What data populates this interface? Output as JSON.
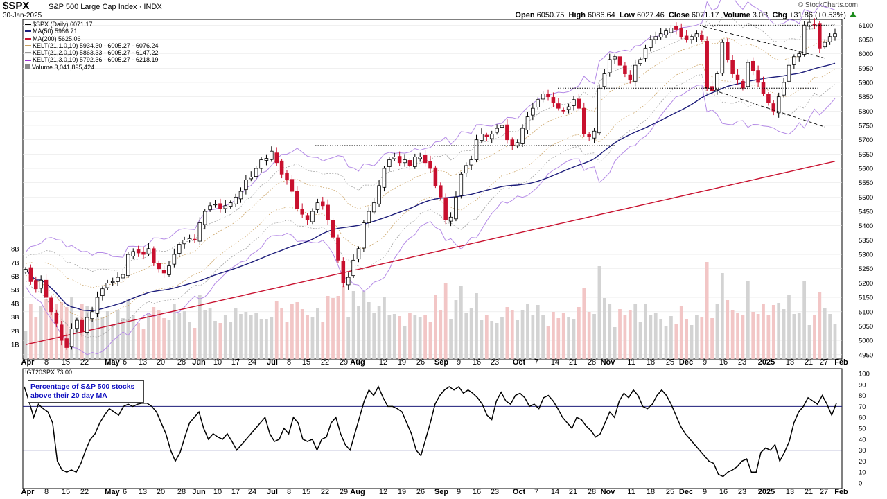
{
  "header": {
    "symbol": "$SPX",
    "name": "S&P 500 Large Cap Index",
    "exchange": "INDX",
    "date": "30-Jan-2025",
    "brand": "© StockCharts.com",
    "open_label": "Open",
    "open": "6050.75",
    "high_label": "High",
    "high": "6086.64",
    "low_label": "Low",
    "low": "6027.46",
    "close_label": "Close",
    "close": "6071.17",
    "volume_label": "Volume",
    "volume": "3.0B",
    "chg_label": "Chg",
    "chg": "+31.86 (+0.53%)"
  },
  "legend": [
    {
      "text": "$SPX (Daily) 6071.17",
      "color": "#000000"
    },
    {
      "text": "MA(50) 5986.71",
      "color": "#1c1c7a"
    },
    {
      "text": "MA(200) 5625.06",
      "color": "#c8102e"
    },
    {
      "text": "KELT(21,1.0,10) 5934.30 - 6005.27 - 6076.24",
      "color": "#c9a060"
    },
    {
      "text": "KELT(21,2.0,10) 5863.33 - 6005.27 - 6147.22",
      "color": "#999999"
    },
    {
      "text": "KELT(21,3.0,10) 5792.36 - 6005.27 - 6218.19",
      "color": "#9933cc"
    },
    {
      "text": "Volume 3,041,895,424",
      "color": "#888888"
    }
  ],
  "indicator": {
    "title": "!GT20SPX 73.00",
    "box_text": "Percentage of S&P 500 stocks above their 20 day MA",
    "upper_line": 70,
    "lower_line": 30
  },
  "colors": {
    "up": "#ffffff",
    "down": "#c8102e",
    "ma50": "#1c1c7a",
    "ma200": "#c8102e",
    "kelt1": "#c9a060",
    "kelt2": "#999999",
    "kelt3": "#b48ae6",
    "vol_up": "#d3d3d3",
    "vol_down": "#f2c6c6",
    "grid": "#e6e6e6"
  },
  "chart_data": [
    {
      "type": "candlestick",
      "title": "$SPX (Daily)",
      "y_axis_ticks": [
        4950,
        5000,
        5050,
        5100,
        5150,
        5200,
        5250,
        5300,
        5350,
        5400,
        5450,
        5500,
        5550,
        5600,
        5650,
        5700,
        5750,
        5800,
        5850,
        5900,
        5950,
        6000,
        6050,
        6100
      ],
      "ylim": [
        4935,
        6120
      ],
      "volume_ticks": [
        "1B",
        "2B",
        "3B",
        "4B",
        "5B",
        "6B",
        "7B",
        "8B"
      ],
      "x_ticks": [
        {
          "label": "Apr",
          "bold": true
        },
        {
          "label": "8"
        },
        {
          "label": "15"
        },
        {
          "label": "22"
        },
        {
          "label": "May",
          "bold": true
        },
        {
          "label": "6"
        },
        {
          "label": "13"
        },
        {
          "label": "20"
        },
        {
          "label": "28"
        },
        {
          "label": "Jun",
          "bold": true
        },
        {
          "label": "10"
        },
        {
          "label": "17"
        },
        {
          "label": "24"
        },
        {
          "label": "Jul",
          "bold": true
        },
        {
          "label": "8"
        },
        {
          "label": "15"
        },
        {
          "label": "22"
        },
        {
          "label": "29"
        },
        {
          "label": "Aug",
          "bold": true
        },
        {
          "label": "12"
        },
        {
          "label": "19"
        },
        {
          "label": "26"
        },
        {
          "label": "Sep",
          "bold": true
        },
        {
          "label": "9"
        },
        {
          "label": "16"
        },
        {
          "label": "23"
        },
        {
          "label": "Oct",
          "bold": true
        },
        {
          "label": "7"
        },
        {
          "label": "14"
        },
        {
          "label": "21"
        },
        {
          "label": "28"
        },
        {
          "label": "Nov",
          "bold": true
        },
        {
          "label": "11"
        },
        {
          "label": "18"
        },
        {
          "label": "25"
        },
        {
          "label": "Dec",
          "bold": true
        },
        {
          "label": "9"
        },
        {
          "label": "16"
        },
        {
          "label": "23"
        },
        {
          "label": "2025",
          "bold": true
        },
        {
          "label": "13"
        },
        {
          "label": "21"
        },
        {
          "label": "27"
        },
        {
          "label": "Feb",
          "bold": true
        }
      ],
      "price_path": [
        5248,
        5205,
        5180,
        5210,
        5150,
        5100,
        5060,
        5000,
        4975,
        5040,
        5070,
        5030,
        5080,
        5100,
        5150,
        5180,
        5200,
        5205,
        5220,
        5230,
        5300,
        5310,
        5305,
        5300,
        5320,
        5270,
        5250,
        5235,
        5260,
        5300,
        5335,
        5350,
        5355,
        5350,
        5410,
        5450,
        5470,
        5475,
        5460,
        5470,
        5480,
        5500,
        5520,
        5560,
        5570,
        5600,
        5630,
        5635,
        5660,
        5620,
        5580,
        5560,
        5520,
        5460,
        5440,
        5420,
        5450,
        5480,
        5470,
        5420,
        5360,
        5280,
        5200,
        5220,
        5280,
        5320,
        5410,
        5450,
        5480,
        5540,
        5600,
        5630,
        5640,
        5620,
        5630,
        5610,
        5640,
        5640,
        5620,
        5600,
        5540,
        5500,
        5420,
        5430,
        5500,
        5580,
        5610,
        5630,
        5700,
        5720,
        5710,
        5720,
        5740,
        5750,
        5700,
        5680,
        5690,
        5740,
        5780,
        5810,
        5840,
        5860,
        5850,
        5830,
        5810,
        5800,
        5815,
        5840,
        5810,
        5720,
        5710,
        5730,
        5880,
        5930,
        5980,
        5990,
        5960,
        5930,
        5910,
        5960,
        5980,
        6020,
        6050,
        6060,
        6070,
        6080,
        6090,
        6085,
        6060,
        6050,
        6060,
        6070,
        6050,
        5880,
        5870,
        5930,
        6040,
        5980,
        5930,
        5910,
        5880,
        5970,
        5940,
        5900,
        5860,
        5830,
        5800,
        5850,
        5900,
        5960,
        5990,
        6000,
        6100,
        6110,
        6100,
        6020,
        6040,
        6060,
        6070
      ]
    },
    {
      "type": "line",
      "title": "!GT20SPX",
      "y_axis_ticks": [
        0,
        10,
        20,
        30,
        40,
        50,
        60,
        70,
        80,
        90,
        100
      ],
      "ylim": [
        0,
        100
      ],
      "values": [
        88,
        75,
        60,
        72,
        68,
        65,
        55,
        20,
        12,
        10,
        12,
        10,
        18,
        30,
        40,
        45,
        55,
        62,
        68,
        65,
        62,
        70,
        72,
        70,
        72,
        73,
        73,
        70,
        65,
        55,
        45,
        30,
        20,
        28,
        42,
        55,
        60,
        65,
        50,
        40,
        45,
        42,
        40,
        45,
        38,
        30,
        35,
        40,
        45,
        50,
        55,
        60,
        45,
        38,
        40,
        50,
        45,
        60,
        55,
        40,
        38,
        40,
        30,
        40,
        42,
        55,
        60,
        45,
        35,
        30,
        45,
        60,
        75,
        85,
        80,
        88,
        78,
        70,
        70,
        68,
        65,
        55,
        45,
        30,
        25,
        40,
        55,
        72,
        80,
        85,
        88,
        85,
        88,
        82,
        85,
        82,
        78,
        72,
        62,
        58,
        75,
        83,
        75,
        72,
        80,
        82,
        78,
        70,
        72,
        68,
        78,
        80,
        75,
        68,
        60,
        55,
        50,
        60,
        58,
        52,
        48,
        42,
        45,
        55,
        65,
        60,
        75,
        82,
        78,
        85,
        80,
        70,
        68,
        72,
        80,
        85,
        80,
        72,
        62,
        52,
        45,
        40,
        35,
        30,
        25,
        20,
        18,
        8,
        6,
        10,
        12,
        15,
        20,
        22,
        10,
        10,
        28,
        32,
        30,
        35,
        20,
        28,
        38,
        55,
        65,
        70,
        78,
        75,
        72,
        80,
        72,
        62,
        73
      ]
    }
  ]
}
